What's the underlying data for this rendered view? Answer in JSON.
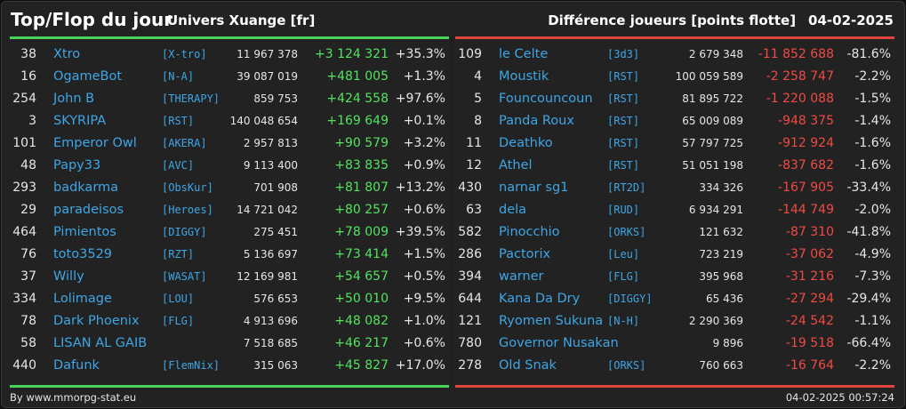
{
  "header": {
    "title": "Top/Flop du jour",
    "universe": "Univers Xuange [fr]",
    "metric": "Différence joueurs [points flotte]",
    "date": "04-02-2025"
  },
  "colors": {
    "gain": "#53e35f",
    "loss": "#f04a44",
    "link": "#3ea6e6",
    "top_bar": "#46d35a",
    "flop_bar": "#e0463e"
  },
  "top": [
    {
      "rank": "38",
      "name": "Xtro",
      "alliance": "[X-tro]",
      "points": "11 967 378",
      "diff": "+3 124 321",
      "pct": "+35.3%"
    },
    {
      "rank": "16",
      "name": "OgameBot",
      "alliance": "[N-A]",
      "points": "39 087 019",
      "diff": "+481 005",
      "pct": "+1.3%"
    },
    {
      "rank": "254",
      "name": "John B",
      "alliance": "[THERAPY]",
      "points": "859 753",
      "diff": "+424 558",
      "pct": "+97.6%"
    },
    {
      "rank": "3",
      "name": "SKYRIPA",
      "alliance": "[RST]",
      "points": "140 048 654",
      "diff": "+169 649",
      "pct": "+0.1%"
    },
    {
      "rank": "101",
      "name": "Emperor Owl",
      "alliance": "[AKERA]",
      "points": "2 957 813",
      "diff": "+90 579",
      "pct": "+3.2%"
    },
    {
      "rank": "48",
      "name": "Papy33",
      "alliance": "[AVC]",
      "points": "9 113 400",
      "diff": "+83 835",
      "pct": "+0.9%"
    },
    {
      "rank": "293",
      "name": "badkarma",
      "alliance": "[ObsKur]",
      "points": "701 908",
      "diff": "+81 807",
      "pct": "+13.2%"
    },
    {
      "rank": "29",
      "name": "paradeisos",
      "alliance": "[Heroes]",
      "points": "14 721 042",
      "diff": "+80 257",
      "pct": "+0.6%"
    },
    {
      "rank": "464",
      "name": "Pimientos",
      "alliance": "[DIGGY]",
      "points": "275 451",
      "diff": "+78 009",
      "pct": "+39.5%"
    },
    {
      "rank": "76",
      "name": "toto3529",
      "alliance": "[RZT]",
      "points": "5 136 697",
      "diff": "+73 414",
      "pct": "+1.5%"
    },
    {
      "rank": "37",
      "name": "Willy",
      "alliance": "[WASAT]",
      "points": "12 169 981",
      "diff": "+54 657",
      "pct": "+0.5%"
    },
    {
      "rank": "334",
      "name": "Lolimage",
      "alliance": "[LOU]",
      "points": "576 653",
      "diff": "+50 010",
      "pct": "+9.5%"
    },
    {
      "rank": "78",
      "name": "Dark Phoenix",
      "alliance": "[FLG]",
      "points": "4 913 696",
      "diff": "+48 082",
      "pct": "+1.0%"
    },
    {
      "rank": "58",
      "name": "LISAN AL GAIB",
      "alliance": "",
      "points": "7 518 685",
      "diff": "+46 217",
      "pct": "+0.6%"
    },
    {
      "rank": "440",
      "name": "Dafunk",
      "alliance": "[FlemNix]",
      "points": "315 063",
      "diff": "+45 827",
      "pct": "+17.0%"
    }
  ],
  "flop": [
    {
      "rank": "109",
      "name": "le Celte",
      "alliance": "[3d3]",
      "points": "2 679 348",
      "diff": "-11 852 688",
      "pct": "-81.6%"
    },
    {
      "rank": "4",
      "name": "Moustik",
      "alliance": "[RST]",
      "points": "100 059 589",
      "diff": "-2 258 747",
      "pct": "-2.2%"
    },
    {
      "rank": "5",
      "name": "Founcouncoun",
      "alliance": "[RST]",
      "points": "81 895 722",
      "diff": "-1 220 088",
      "pct": "-1.5%"
    },
    {
      "rank": "8",
      "name": "Panda Roux",
      "alliance": "[RST]",
      "points": "65 009 089",
      "diff": "-948 375",
      "pct": "-1.4%"
    },
    {
      "rank": "11",
      "name": "Deathko",
      "alliance": "[RST]",
      "points": "57 797 725",
      "diff": "-912 924",
      "pct": "-1.6%"
    },
    {
      "rank": "12",
      "name": "Athel",
      "alliance": "[RST]",
      "points": "51 051 198",
      "diff": "-837 682",
      "pct": "-1.6%"
    },
    {
      "rank": "430",
      "name": "narnar sg1",
      "alliance": "[RT2D]",
      "points": "334 326",
      "diff": "-167 905",
      "pct": "-33.4%"
    },
    {
      "rank": "63",
      "name": "dela",
      "alliance": "[RUD]",
      "points": "6 934 291",
      "diff": "-144 749",
      "pct": "-2.0%"
    },
    {
      "rank": "582",
      "name": "Pinocchio",
      "alliance": "[ORKS]",
      "points": "121 632",
      "diff": "-87 310",
      "pct": "-41.8%"
    },
    {
      "rank": "286",
      "name": "Pactorix",
      "alliance": "[Leu]",
      "points": "723 219",
      "diff": "-37 062",
      "pct": "-4.9%"
    },
    {
      "rank": "394",
      "name": "warner",
      "alliance": "[FLG]",
      "points": "395 968",
      "diff": "-31 216",
      "pct": "-7.3%"
    },
    {
      "rank": "644",
      "name": "Kana Da Dry",
      "alliance": "[DIGGY]",
      "points": "65 436",
      "diff": "-27 294",
      "pct": "-29.4%"
    },
    {
      "rank": "121",
      "name": "Ryomen Sukuna",
      "alliance": "[N-H]",
      "points": "2 290 369",
      "diff": "-24 542",
      "pct": "-1.1%"
    },
    {
      "rank": "780",
      "name": "Governor Nusakan",
      "alliance": "",
      "points": "9 896",
      "diff": "-19 518",
      "pct": "-66.4%"
    },
    {
      "rank": "278",
      "name": "Old Snak",
      "alliance": "[ORKS]",
      "points": "760 663",
      "diff": "-16 764",
      "pct": "-2.2%"
    }
  ],
  "footer": {
    "credit": "By www.mmorpg-stat.eu",
    "timestamp": "04-02-2025 00:57:24"
  }
}
